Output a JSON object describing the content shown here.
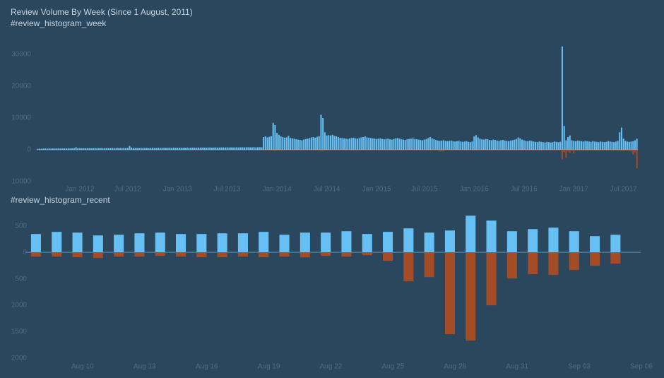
{
  "chart_data": [
    {
      "type": "bar",
      "title": "Review Volume By Week (Since 1 August, 2011)",
      "subtitle": "#review_histogram_week",
      "categories": [
        null,
        null,
        null,
        null,
        null,
        null,
        null,
        null,
        null,
        null,
        null,
        null,
        null,
        null,
        null,
        null,
        null,
        null,
        null,
        null,
        null,
        null,
        "Jan 2012",
        null,
        null,
        null,
        null,
        null,
        null,
        null,
        null,
        null,
        null,
        null,
        null,
        null,
        null,
        null,
        null,
        null,
        null,
        null,
        null,
        null,
        null,
        null,
        null,
        "Jul 2012",
        null,
        null,
        null,
        null,
        null,
        null,
        null,
        null,
        null,
        null,
        null,
        null,
        null,
        null,
        null,
        null,
        null,
        null,
        null,
        null,
        null,
        null,
        null,
        null,
        null,
        "Jan 2013",
        null,
        null,
        null,
        null,
        null,
        null,
        null,
        null,
        null,
        null,
        null,
        null,
        null,
        null,
        null,
        null,
        null,
        null,
        null,
        null,
        null,
        null,
        null,
        null,
        null,
        "Jul 2013",
        null,
        null,
        null,
        null,
        null,
        null,
        null,
        null,
        null,
        null,
        null,
        null,
        null,
        null,
        null,
        null,
        null,
        null,
        null,
        null,
        null,
        null,
        null,
        null,
        null,
        "Jan 2014",
        null,
        null,
        null,
        null,
        null,
        null,
        null,
        null,
        null,
        null,
        null,
        null,
        null,
        null,
        null,
        null,
        null,
        null,
        null,
        null,
        null,
        null,
        null,
        null,
        null,
        "Jul 2014",
        null,
        null,
        null,
        null,
        null,
        null,
        null,
        null,
        null,
        null,
        null,
        null,
        null,
        null,
        null,
        null,
        null,
        null,
        null,
        null,
        null,
        null,
        null,
        null,
        null,
        "Jan 2015",
        null,
        null,
        null,
        null,
        null,
        null,
        null,
        null,
        null,
        null,
        null,
        null,
        null,
        null,
        null,
        null,
        null,
        null,
        null,
        null,
        null,
        null,
        null,
        null,
        "Jul 2015",
        null,
        null,
        null,
        null,
        null,
        null,
        null,
        null,
        null,
        null,
        null,
        null,
        null,
        null,
        null,
        null,
        null,
        null,
        null,
        null,
        null,
        null,
        null,
        null,
        null,
        "Jan 2016",
        null,
        null,
        null,
        null,
        null,
        null,
        null,
        null,
        null,
        null,
        null,
        null,
        null,
        null,
        null,
        null,
        null,
        null,
        null,
        null,
        null,
        null,
        null,
        null,
        null,
        "Jul 2016",
        null,
        null,
        null,
        null,
        null,
        null,
        null,
        null,
        null,
        null,
        null,
        null,
        null,
        null,
        null,
        null,
        null,
        null,
        null,
        null,
        null,
        null,
        null,
        null,
        null,
        "Jan 2017",
        null,
        null,
        null,
        null,
        null,
        null,
        null,
        null,
        null,
        null,
        null,
        null,
        null,
        null,
        null,
        null,
        null,
        null,
        null,
        null,
        null,
        null,
        null,
        null,
        null,
        "Jul 2017",
        null,
        null,
        null,
        null,
        null,
        null,
        null
      ],
      "series": [
        {
          "color": "#66c0f4",
          "values": [
            300,
            350,
            320,
            380,
            400,
            360,
            420,
            390,
            410,
            380,
            450,
            430,
            400,
            420,
            440,
            410,
            460,
            430,
            450,
            480,
            800,
            500,
            480,
            460,
            500,
            470,
            490,
            510,
            480,
            500,
            520,
            490,
            510,
            530,
            500,
            520,
            540,
            510,
            530,
            550,
            520,
            540,
            560,
            530,
            550,
            570,
            540,
            560,
            1200,
            700,
            560,
            580,
            550,
            570,
            590,
            560,
            580,
            600,
            570,
            590,
            610,
            580,
            600,
            620,
            590,
            610,
            630,
            600,
            620,
            640,
            610,
            630,
            650,
            620,
            640,
            660,
            640,
            660,
            680,
            650,
            670,
            690,
            660,
            680,
            700,
            670,
            690,
            710,
            680,
            700,
            720,
            690,
            710,
            730,
            700,
            720,
            740,
            710,
            730,
            750,
            720,
            740,
            730,
            750,
            770,
            740,
            760,
            780,
            750,
            770,
            790,
            760,
            780,
            800,
            770,
            790,
            810,
            780,
            4000,
            4200,
            3900,
            4100,
            4300,
            8500,
            7800,
            5300,
            4700,
            4200,
            4000,
            3800,
            3900,
            4400,
            3700,
            3600,
            3500,
            3300,
            3200,
            3100,
            3000,
            3200,
            3400,
            3500,
            3700,
            3900,
            4000,
            3800,
            4100,
            4300,
            11000,
            10000,
            5500,
            4500,
            4600,
            4500,
            4700,
            4400,
            4200,
            4000,
            3800,
            3700,
            3600,
            3500,
            3400,
            3600,
            3700,
            3800,
            3600,
            3500,
            3700,
            3900,
            4000,
            4200,
            3900,
            3800,
            3700,
            3600,
            3500,
            3400,
            3500,
            3600,
            3400,
            3300,
            3400,
            3500,
            3300,
            3200,
            3400,
            3600,
            3700,
            3500,
            3300,
            3200,
            3100,
            3300,
            3400,
            3500,
            3600,
            3400,
            3300,
            3200,
            3100,
            3000,
            3200,
            3400,
            3700,
            4000,
            3600,
            3300,
            3100,
            2900,
            2800,
            2900,
            3000,
            2800,
            2700,
            2800,
            2900,
            2700,
            2600,
            2700,
            2800,
            2600,
            2500,
            2600,
            2700,
            2500,
            2400,
            2600,
            4200,
            4600,
            3900,
            3500,
            3300,
            3200,
            3400,
            3300,
            3100,
            3000,
            3200,
            3100,
            2900,
            2800,
            3000,
            3100,
            2900,
            2800,
            2700,
            2900,
            3000,
            3200,
            3400,
            3900,
            3600,
            3200,
            3000,
            2800,
            2700,
            2900,
            2800,
            2600,
            2500,
            2400,
            2600,
            2500,
            2400,
            2300,
            2500,
            2400,
            2300,
            2400,
            2600,
            2500,
            2400,
            2500,
            32500,
            7500,
            3000,
            4000,
            4500,
            3000,
            2800,
            2700,
            2900,
            2800,
            2700,
            2600,
            2800,
            2700,
            2600,
            2500,
            2700,
            2600,
            2500,
            2400,
            2600,
            2500,
            2400,
            2500,
            2700,
            2600,
            2500,
            2400,
            2600,
            2800,
            5500,
            7000,
            3500,
            2800,
            2600,
            2500,
            2600,
            2700,
            3000,
            3500
          ]
        },
        {
          "color": "#a34c25",
          "values": [
            -20,
            -20,
            -20,
            -20,
            -20,
            -20,
            -20,
            -20,
            -20,
            -20,
            -20,
            -20,
            -20,
            -20,
            -20,
            -20,
            -20,
            -20,
            -20,
            -20,
            -20,
            -20,
            -20,
            -20,
            -20,
            -20,
            -20,
            -20,
            -20,
            -20,
            -20,
            -20,
            -20,
            -20,
            -20,
            -20,
            -20,
            -20,
            -20,
            -20,
            -20,
            -20,
            -20,
            -20,
            -20,
            -20,
            -20,
            -20,
            -20,
            -20,
            -20,
            -20,
            -20,
            -20,
            -20,
            -20,
            -20,
            -20,
            -20,
            -20,
            -20,
            -20,
            -20,
            -20,
            -20,
            -20,
            -20,
            -20,
            -20,
            -20,
            -20,
            -20,
            -20,
            -20,
            -20,
            -20,
            -20,
            -20,
            -20,
            -20,
            -20,
            -20,
            -20,
            -20,
            -20,
            -20,
            -20,
            -20,
            -20,
            -20,
            -20,
            -20,
            -20,
            -20,
            -20,
            -20,
            -20,
            -20,
            -20,
            -20,
            -20,
            -20,
            -20,
            -20,
            -20,
            -20,
            -20,
            -20,
            -20,
            -20,
            -20,
            -20,
            -20,
            -20,
            -20,
            -20,
            -20,
            -20,
            -200,
            -250,
            -200,
            -300,
            -250,
            -300,
            -350,
            -300,
            -250,
            -200,
            -200,
            -200,
            -150,
            -200,
            -200,
            -150,
            -200,
            -200,
            -150,
            -200,
            -200,
            -150,
            -200,
            -200,
            -150,
            -200,
            -200,
            -150,
            -200,
            -200,
            -400,
            -350,
            -250,
            -200,
            -200,
            -150,
            -200,
            -200,
            -150,
            -200,
            -200,
            -150,
            -200,
            -200,
            -150,
            -200,
            -200,
            -150,
            -200,
            -200,
            -150,
            -200,
            -200,
            -150,
            -200,
            -200,
            -150,
            -200,
            -200,
            -150,
            -200,
            -200,
            -150,
            -200,
            -200,
            -150,
            -200,
            -200,
            -150,
            -200,
            -200,
            -150,
            -200,
            -200,
            -150,
            -200,
            -200,
            -150,
            -200,
            -200,
            -150,
            -200,
            -200,
            -150,
            -200,
            -200,
            -150,
            -200,
            -200,
            -150,
            -200,
            -200,
            -500,
            -450,
            -500,
            -200,
            -150,
            -200,
            -200,
            -150,
            -200,
            -200,
            -150,
            -200,
            -200,
            -150,
            -200,
            -200,
            -150,
            -200,
            -300,
            -300,
            -250,
            -200,
            -200,
            -200,
            -200,
            -150,
            -200,
            -200,
            -150,
            -200,
            -200,
            -150,
            -200,
            -200,
            -150,
            -200,
            -200,
            -150,
            -200,
            -200,
            -150,
            -200,
            -200,
            -150,
            -200,
            -200,
            -150,
            -200,
            -200,
            -150,
            -200,
            -200,
            -150,
            -200,
            -200,
            -150,
            -200,
            -200,
            -150,
            -200,
            -200,
            -150,
            -200,
            -200,
            -3000,
            -800,
            -2500,
            -500,
            -1000,
            -300,
            -1000,
            -300,
            -250,
            -300,
            -250,
            -300,
            -250,
            -300,
            -250,
            -300,
            -250,
            -300,
            -250,
            -300,
            -250,
            -300,
            -250,
            -300,
            -250,
            -300,
            -250,
            -300,
            -250,
            -300,
            -300,
            -300,
            -400,
            -300,
            -300,
            -400,
            -500,
            -1500,
            -800,
            -5800
          ]
        }
      ],
      "ylim": [
        -10000,
        35000
      ],
      "yticks": [
        {
          "value": -10000,
          "label": "10000"
        },
        0,
        10000,
        20000,
        30000
      ],
      "grid": false
    },
    {
      "type": "bar",
      "title": "#review_histogram_recent",
      "categories": [
        null,
        null,
        "Aug 10",
        null,
        null,
        "Aug 13",
        null,
        null,
        "Aug 16",
        null,
        null,
        "Aug 19",
        null,
        null,
        "Aug 22",
        null,
        null,
        "Aug 25",
        null,
        null,
        "Aug 28",
        null,
        null,
        "Aug 31",
        null,
        null,
        "Sep 03",
        null,
        null,
        "Sep 06"
      ],
      "series": [
        {
          "color": "#66c0f4",
          "values": [
            347,
            387,
            373,
            320,
            333,
            360,
            373,
            347,
            347,
            360,
            360,
            387,
            333,
            373,
            373,
            400,
            347,
            387,
            453,
            373,
            413,
            693,
            600,
            400,
            440,
            467,
            400,
            307,
            333,
            null
          ]
        },
        {
          "color": "#a34c25",
          "values": [
            -80,
            -80,
            -93,
            -107,
            -80,
            -80,
            -67,
            -80,
            -93,
            -93,
            -80,
            -93,
            -80,
            -93,
            -67,
            -80,
            -53,
            -160,
            -547,
            -467,
            -1547,
            -1667,
            -1000,
            -493,
            -413,
            -427,
            -333,
            -253,
            -213,
            null
          ]
        }
      ],
      "ylim": [
        -2000,
        750
      ],
      "yticks": [
        {
          "value": -2000,
          "label": "2000"
        },
        {
          "value": -1500,
          "label": "1500"
        },
        {
          "value": -1000,
          "label": "1000"
        },
        {
          "value": -500,
          "label": "500"
        },
        0,
        500
      ],
      "grid": false
    }
  ]
}
